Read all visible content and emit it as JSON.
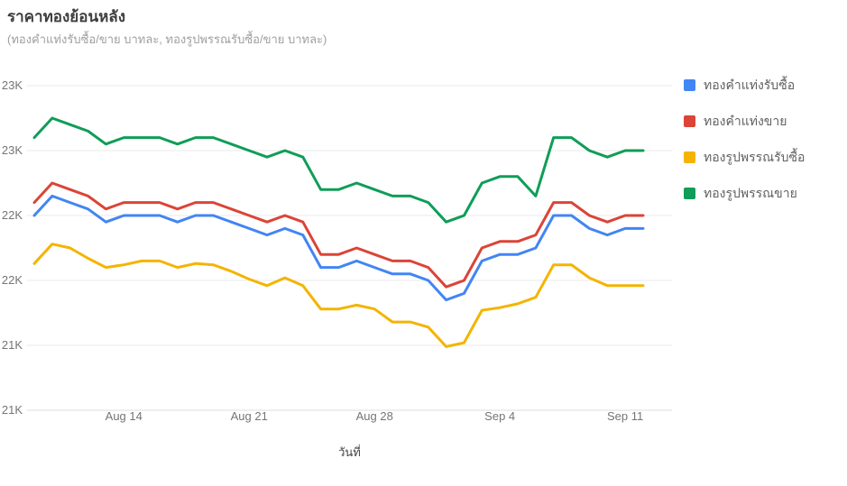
{
  "header": {
    "title": "ราคาทองย้อนหลัง",
    "subtitle": "(ทองคำแท่งรับซื้อ/ขาย บาทละ, ทองรูปพรรณรับซื้อ/ขาย บาทละ)"
  },
  "legend": {
    "items": [
      {
        "id": "bar_buy",
        "label": "ทองคำแท่งรับซื้อ",
        "color": "#4285F4"
      },
      {
        "id": "bar_sell",
        "label": "ทองคำแท่งขาย",
        "color": "#DB4437"
      },
      {
        "id": "ornament_buy",
        "label": "ทองรูปพรรณรับซื้อ",
        "color": "#F4B400"
      },
      {
        "id": "ornament_sell",
        "label": "ทองรูปพรรณขาย",
        "color": "#0F9D58"
      }
    ]
  },
  "chart_data": {
    "type": "line",
    "title": "ราคาทองย้อนหลัง",
    "subtitle": "(ทองคำแท่งรับซื้อ/ขาย บาทละ, ทองรูปพรรณรับซื้อ/ขาย บาทละ)",
    "xlabel": "วันที่",
    "ylabel": "",
    "unit": "บาท",
    "ylim": [
      21000,
      23500
    ],
    "grid": true,
    "legend_position": "right",
    "x": [
      "Aug 9",
      "Aug 10",
      "Aug 11",
      "Aug 12",
      "Aug 13",
      "Aug 14",
      "Aug 15",
      "Aug 16",
      "Aug 17",
      "Aug 18",
      "Aug 19",
      "Aug 20",
      "Aug 21",
      "Aug 22",
      "Aug 23",
      "Aug 24",
      "Aug 25",
      "Aug 26",
      "Aug 27",
      "Aug 28",
      "Aug 29",
      "Aug 30",
      "Aug 31",
      "Sep 1",
      "Sep 2",
      "Sep 3",
      "Sep 4",
      "Sep 5",
      "Sep 6",
      "Sep 7",
      "Sep 8",
      "Sep 9",
      "Sep 10",
      "Sep 11",
      "Sep 12"
    ],
    "xticks": [
      {
        "index": 5,
        "label": "Aug 14"
      },
      {
        "index": 12,
        "label": "Aug 21"
      },
      {
        "index": 19,
        "label": "Aug 28"
      },
      {
        "index": 26,
        "label": "Sep 4"
      },
      {
        "index": 33,
        "label": "Sep 11"
      }
    ],
    "yticks": [
      {
        "value": 21000,
        "label": "21K"
      },
      {
        "value": 21500,
        "label": "21K"
      },
      {
        "value": 22000,
        "label": "22K"
      },
      {
        "value": 22500,
        "label": "22K"
      },
      {
        "value": 23000,
        "label": "23K"
      },
      {
        "value": 23500,
        "label": "23K"
      }
    ],
    "series": [
      {
        "id": "bar_buy",
        "name": "ทองคำแท่งรับซื้อ",
        "color": "#4285F4",
        "values": [
          22500,
          22650,
          22600,
          22550,
          22450,
          22500,
          22500,
          22500,
          22450,
          22500,
          22500,
          22450,
          22400,
          22350,
          22400,
          22350,
          22100,
          22100,
          22150,
          22100,
          22050,
          22050,
          22000,
          21850,
          21900,
          22150,
          22200,
          22200,
          22250,
          22500,
          22500,
          22400,
          22350,
          22400,
          22400
        ]
      },
      {
        "id": "bar_sell",
        "name": "ทองคำแท่งขาย",
        "color": "#DB4437",
        "values": [
          22600,
          22750,
          22700,
          22650,
          22550,
          22600,
          22600,
          22600,
          22550,
          22600,
          22600,
          22550,
          22500,
          22450,
          22500,
          22450,
          22200,
          22200,
          22250,
          22200,
          22150,
          22150,
          22100,
          21950,
          22000,
          22250,
          22300,
          22300,
          22350,
          22600,
          22600,
          22500,
          22450,
          22500,
          22500
        ]
      },
      {
        "id": "ornament_buy",
        "name": "ทองรูปพรรณรับซื้อ",
        "color": "#F4B400",
        "values": [
          22130,
          22280,
          22250,
          22170,
          22100,
          22120,
          22150,
          22150,
          22100,
          22130,
          22120,
          22070,
          22010,
          21960,
          22020,
          21960,
          21780,
          21780,
          21810,
          21780,
          21680,
          21680,
          21640,
          21490,
          21520,
          21770,
          21790,
          21820,
          21870,
          22120,
          22120,
          22020,
          21960,
          21960,
          21960
        ]
      },
      {
        "id": "ornament_sell",
        "name": "ทองรูปพรรณขาย",
        "color": "#0F9D58",
        "values": [
          23100,
          23250,
          23200,
          23150,
          23050,
          23100,
          23100,
          23100,
          23050,
          23100,
          23100,
          23050,
          23000,
          22950,
          23000,
          22950,
          22700,
          22700,
          22750,
          22700,
          22650,
          22650,
          22600,
          22450,
          22500,
          22750,
          22800,
          22800,
          22650,
          23100,
          23100,
          23000,
          22950,
          23000,
          23000
        ]
      }
    ]
  }
}
